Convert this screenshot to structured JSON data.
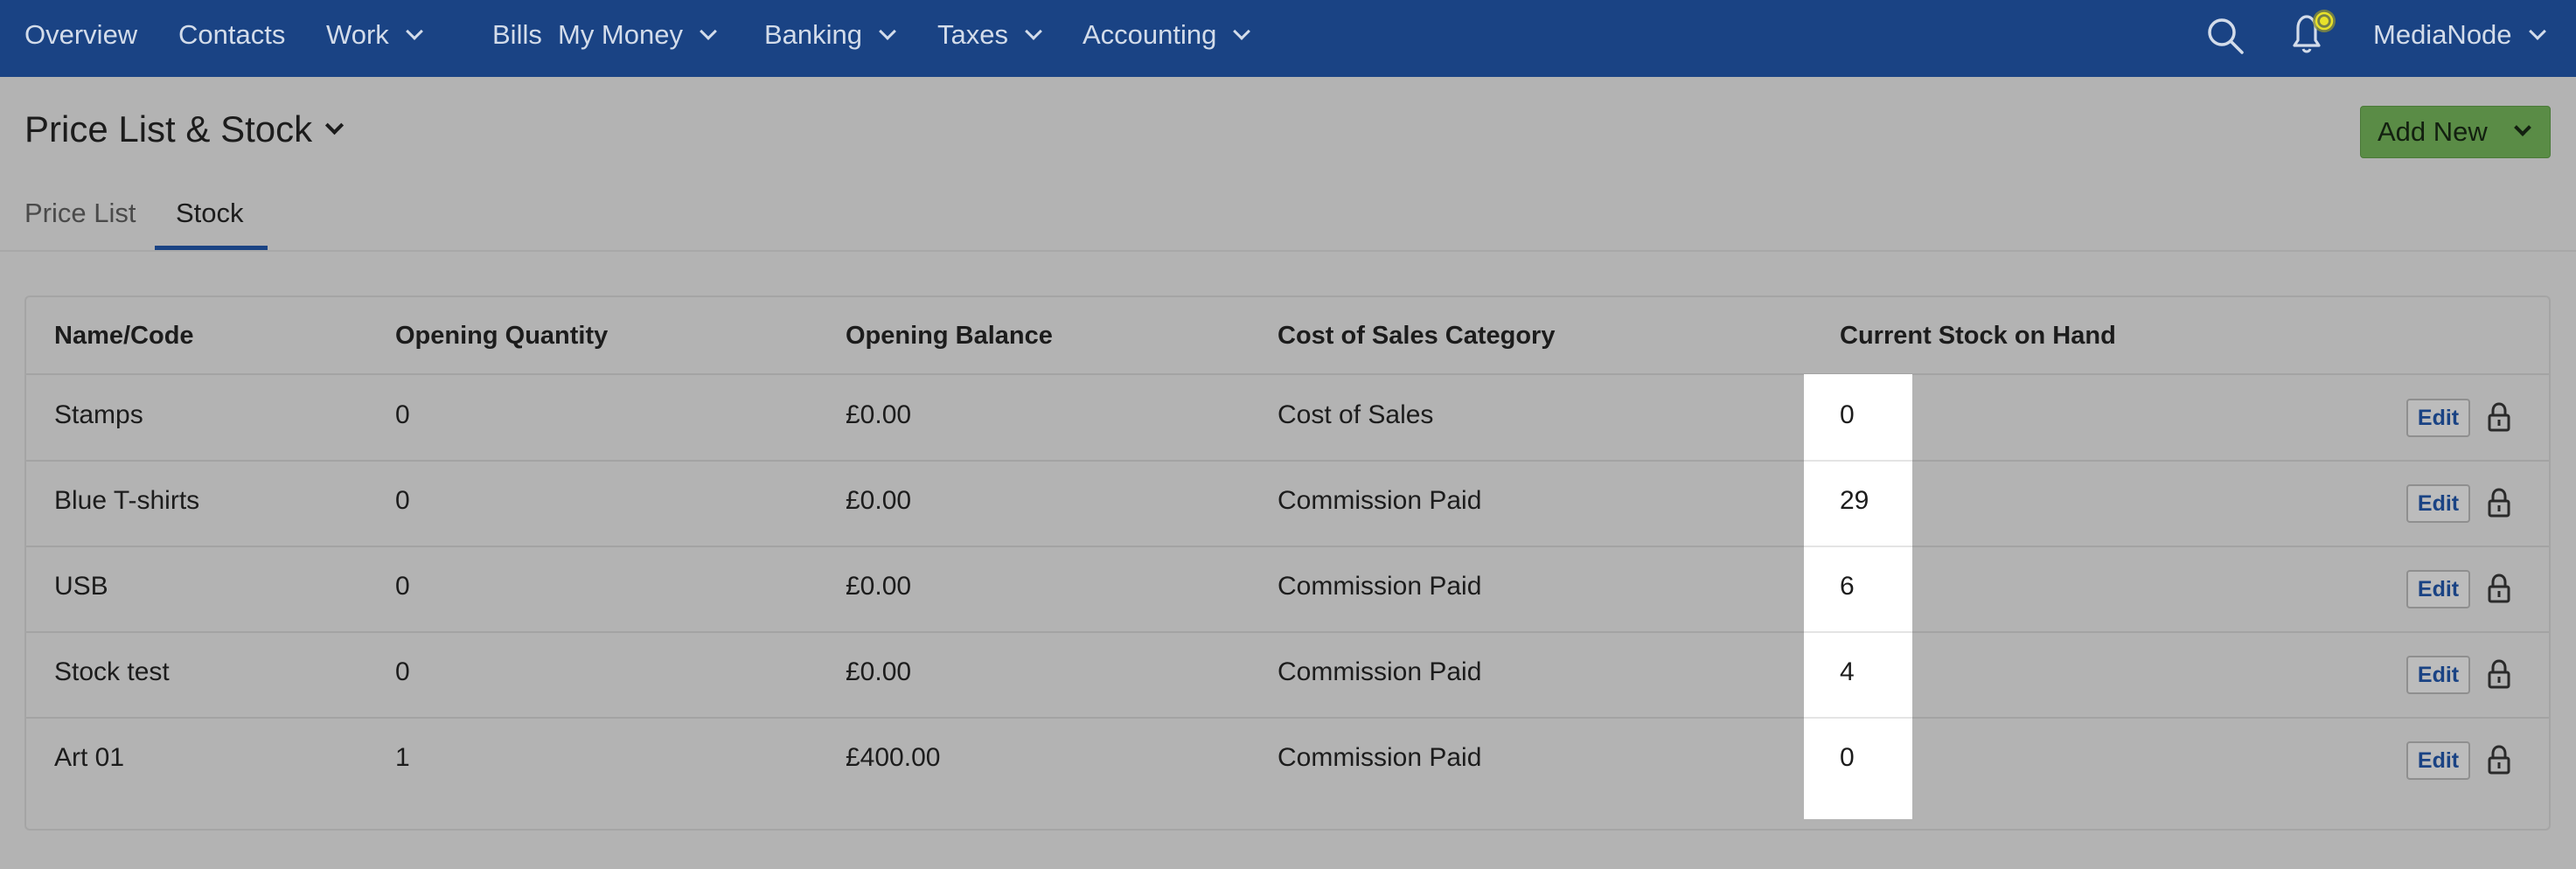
{
  "nav": {
    "items": [
      {
        "label": "Overview",
        "has_dropdown": false
      },
      {
        "label": "Contacts",
        "has_dropdown": false
      },
      {
        "label": "Work",
        "has_dropdown": true
      },
      {
        "label": "Bills",
        "has_dropdown": false
      },
      {
        "label": "My Money",
        "has_dropdown": true
      },
      {
        "label": "Banking",
        "has_dropdown": true
      },
      {
        "label": "Taxes",
        "has_dropdown": true
      },
      {
        "label": "Accounting",
        "has_dropdown": true
      }
    ],
    "account_label": "MediaNode",
    "icons": [
      "search-icon",
      "notification-bell-icon",
      "chevron-down-icon"
    ]
  },
  "page": {
    "title": "Price List & Stock",
    "add_new_label": "Add New"
  },
  "tabs": [
    {
      "label": "Price List",
      "active": false
    },
    {
      "label": "Stock",
      "active": true
    }
  ],
  "table": {
    "columns": [
      "Name/Code",
      "Opening Quantity",
      "Opening Balance",
      "Cost of Sales Category",
      "Current Stock on Hand"
    ],
    "rows": [
      {
        "name": "Stamps",
        "opening_quantity": "0",
        "opening_balance": "£0.00",
        "category": "Cost of Sales",
        "stock_on_hand": "0"
      },
      {
        "name": "Blue T-shirts",
        "opening_quantity": "0",
        "opening_balance": "£0.00",
        "category": "Commission Paid",
        "stock_on_hand": "29"
      },
      {
        "name": "USB",
        "opening_quantity": "0",
        "opening_balance": "£0.00",
        "category": "Commission Paid",
        "stock_on_hand": "6"
      },
      {
        "name": "Stock test",
        "opening_quantity": "0",
        "opening_balance": "£0.00",
        "category": "Commission Paid",
        "stock_on_hand": "4"
      },
      {
        "name": "Art 01",
        "opening_quantity": "1",
        "opening_balance": "£400.00",
        "category": "Commission Paid",
        "stock_on_hand": "0"
      }
    ],
    "edit_label": "Edit"
  },
  "colors": {
    "nav_background": "#1a4384",
    "add_new_button": "#5a8c46",
    "active_tab_underline": "#1a4384",
    "highlighted_column": "#ffffff",
    "notification_dot": "#e8e22a"
  }
}
